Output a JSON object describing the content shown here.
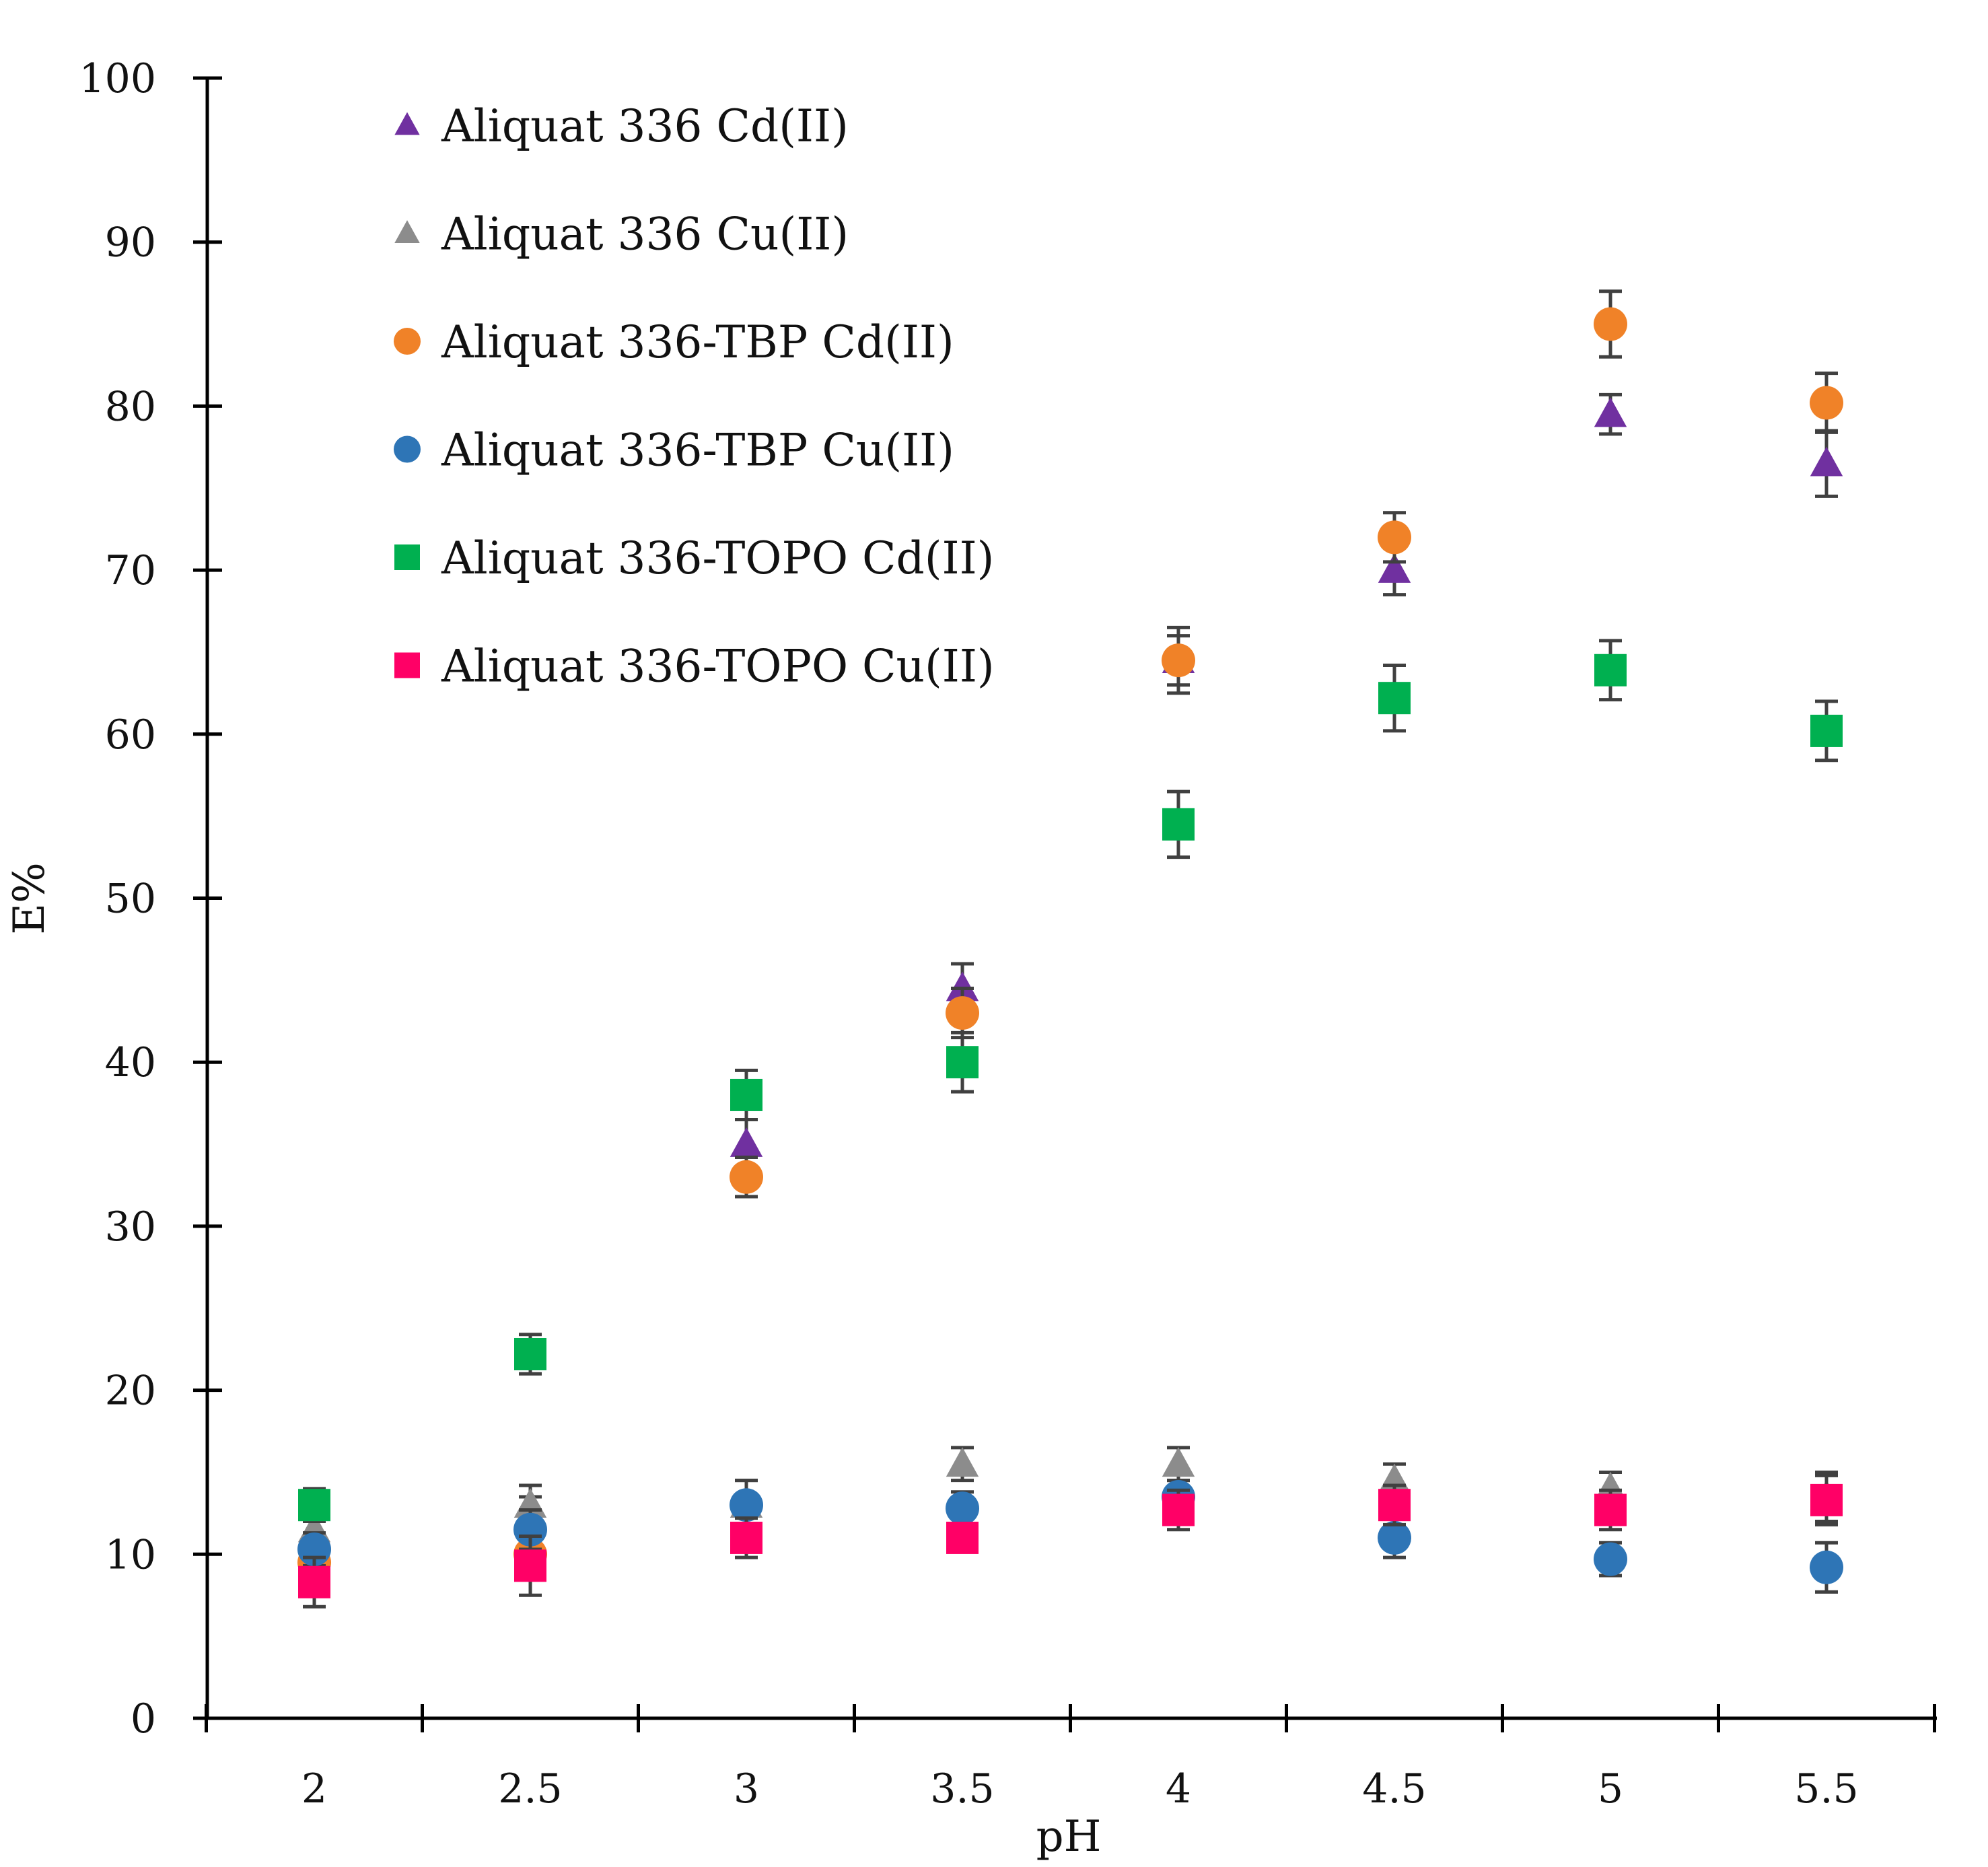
{
  "chart_data": {
    "type": "scatter",
    "title": "",
    "xlabel": "pH",
    "ylabel": "E%",
    "x": [
      2,
      2.5,
      3,
      3.5,
      4,
      4.5,
      5,
      5.5
    ],
    "x_tick_labels": [
      "2",
      "2.5",
      "3",
      "3.5",
      "4",
      "4.5",
      "5",
      "5.5"
    ],
    "ylim": [
      0,
      100
    ],
    "y_ticks": [
      0,
      10,
      20,
      30,
      40,
      50,
      60,
      70,
      80,
      90,
      100
    ],
    "y_tick_labels": [
      "0",
      "10",
      "20",
      "30",
      "40",
      "50",
      "60",
      "70",
      "80",
      "90",
      "100"
    ],
    "grid": false,
    "legend_position": "top-left",
    "series": [
      {
        "name": "Aliquat 336 Cd(II)",
        "marker": "triangle",
        "color": "#7030A0",
        "values": [
          11,
          12,
          35,
          44.5,
          64.5,
          70,
          79.5,
          76.5
        ],
        "errors": [
          1.5,
          1.5,
          1.5,
          1.5,
          2,
          1.5,
          1.2,
          2
        ]
      },
      {
        "name": "Aliquat 336 Cu(II)",
        "marker": "triangle",
        "color": "#8C8C8C",
        "values": [
          11.5,
          13,
          13,
          15.5,
          15.5,
          14.5,
          14,
          13.5
        ],
        "errors": [
          1.5,
          1.2,
          1.5,
          1,
          1,
          1,
          1,
          1.5
        ]
      },
      {
        "name": "Aliquat 336-TBP Cd(II)",
        "marker": "circle",
        "color": "#F08228",
        "values": [
          9.5,
          10,
          33,
          43,
          64.5,
          72,
          85,
          80.2
        ],
        "errors": [
          1,
          1.2,
          1.2,
          1.5,
          1.5,
          1.5,
          2,
          1.8
        ]
      },
      {
        "name": "Aliquat 336-TBP Cu(II)",
        "marker": "circle",
        "color": "#2E75B6",
        "values": [
          10.3,
          11.5,
          13,
          12.8,
          13.5,
          11,
          9.7,
          9.2
        ],
        "errors": [
          1,
          1.2,
          1.5,
          1,
          1,
          1.2,
          1,
          1.5
        ]
      },
      {
        "name": "Aliquat 336-TOPO Cd(II)",
        "marker": "square",
        "color": "#00B050",
        "values": [
          13,
          22.2,
          38,
          40,
          54.5,
          62.2,
          63.9,
          60.2
        ],
        "errors": [
          1,
          1.2,
          1.5,
          1.8,
          2,
          2,
          1.8,
          1.8
        ]
      },
      {
        "name": "Aliquat 336-TOPO Cu(II)",
        "marker": "square",
        "color": "#FF0066",
        "values": [
          8.3,
          9.3,
          11,
          11,
          12.7,
          13,
          12.7,
          13.3
        ],
        "errors": [
          1.5,
          1.8,
          1.2,
          0.8,
          1.2,
          1.2,
          1.2,
          1.5
        ]
      }
    ]
  }
}
